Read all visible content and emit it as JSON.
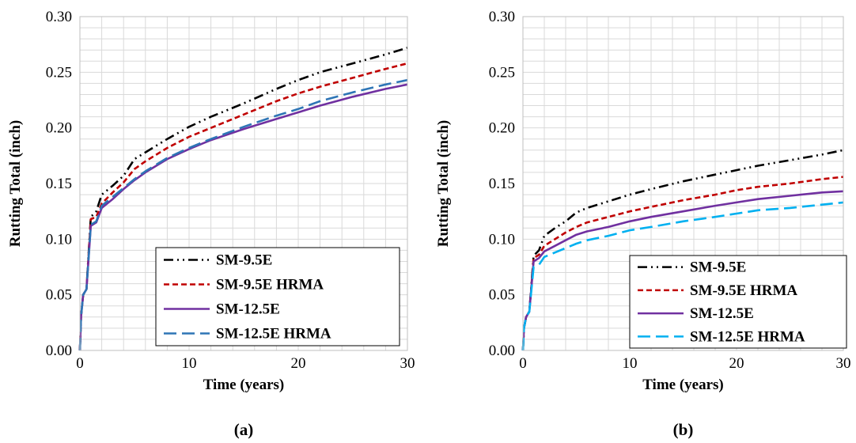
{
  "chart_data": [
    {
      "type": "line",
      "panel_label": "(a)",
      "xlabel": "Time (years)",
      "ylabel": "Rutting Total (inch)",
      "xlim": [
        0,
        30
      ],
      "ylim": [
        0,
        0.3
      ],
      "x_ticks": [
        "0",
        "10",
        "20",
        "30"
      ],
      "y_ticks": [
        "0.00",
        "0.05",
        "0.10",
        "0.15",
        "0.20",
        "0.25",
        "0.30"
      ],
      "grid": true,
      "legend_position": "bottom-right",
      "series": [
        {
          "name": "SM-9.5E",
          "color": "#000000",
          "dash": "dash-dot-dot",
          "x": [
            0,
            0.1,
            0.3,
            0.6,
            1,
            1.5,
            2,
            3,
            4,
            5,
            6,
            8,
            10,
            12,
            15,
            18,
            20,
            22,
            25,
            28,
            30
          ],
          "y": [
            0,
            0.03,
            0.05,
            0.055,
            0.12,
            0.125,
            0.14,
            0.148,
            0.157,
            0.172,
            0.178,
            0.19,
            0.201,
            0.21,
            0.222,
            0.235,
            0.243,
            0.25,
            0.258,
            0.266,
            0.272
          ]
        },
        {
          "name": "SM-9.5E HRMA",
          "color": "#c00000",
          "dash": "short-dash",
          "x": [
            0,
            0.1,
            0.3,
            0.6,
            1,
            1.5,
            2,
            3,
            4,
            5,
            6,
            8,
            10,
            12,
            15,
            18,
            20,
            22,
            25,
            28,
            30
          ],
          "y": [
            0,
            0.03,
            0.05,
            0.055,
            0.118,
            0.12,
            0.132,
            0.142,
            0.151,
            0.163,
            0.17,
            0.182,
            0.192,
            0.2,
            0.212,
            0.224,
            0.231,
            0.237,
            0.245,
            0.253,
            0.258
          ]
        },
        {
          "name": "SM-12.5E",
          "color": "#7030a0",
          "dash": "solid",
          "x": [
            0,
            0.1,
            0.3,
            0.6,
            1,
            1.5,
            2,
            3,
            4,
            5,
            6,
            8,
            10,
            12,
            15,
            18,
            20,
            22,
            25,
            28,
            30
          ],
          "y": [
            0,
            0.03,
            0.05,
            0.055,
            0.112,
            0.115,
            0.128,
            0.136,
            0.145,
            0.153,
            0.16,
            0.172,
            0.181,
            0.189,
            0.199,
            0.208,
            0.214,
            0.22,
            0.228,
            0.235,
            0.239
          ]
        },
        {
          "name": "SM-12.5E HRMA",
          "color": "#2e75b6",
          "dash": "long-dash",
          "x": [
            0,
            0.1,
            0.3,
            0.6,
            1,
            1.5,
            2,
            3,
            4,
            5,
            6,
            8,
            10,
            12,
            15,
            18,
            20,
            22,
            25,
            28,
            30
          ],
          "y": [
            0,
            0.03,
            0.05,
            0.055,
            0.113,
            0.116,
            0.13,
            0.138,
            0.146,
            0.154,
            0.161,
            0.173,
            0.182,
            0.19,
            0.201,
            0.211,
            0.217,
            0.224,
            0.232,
            0.239,
            0.243
          ]
        }
      ]
    },
    {
      "type": "line",
      "panel_label": "(b)",
      "xlabel": "Time (years)",
      "ylabel": "Rutting Total (inch)",
      "xlim": [
        0,
        30
      ],
      "ylim": [
        0,
        0.3
      ],
      "x_ticks": [
        "0",
        "10",
        "20",
        "30"
      ],
      "y_ticks": [
        "0.00",
        "0.05",
        "0.10",
        "0.15",
        "0.20",
        "0.25",
        "0.30"
      ],
      "grid": true,
      "legend_position": "bottom-right",
      "series": [
        {
          "name": "SM-9.5E",
          "color": "#000000",
          "dash": "dash-dot-dot",
          "x": [
            0,
            0.1,
            0.3,
            0.6,
            1,
            1.5,
            2,
            3,
            4,
            5,
            6,
            8,
            10,
            12,
            15,
            18,
            20,
            22,
            25,
            28,
            30
          ],
          "y": [
            0,
            0.02,
            0.03,
            0.035,
            0.085,
            0.09,
            0.103,
            0.11,
            0.116,
            0.124,
            0.128,
            0.134,
            0.14,
            0.145,
            0.152,
            0.158,
            0.162,
            0.166,
            0.171,
            0.176,
            0.18
          ]
        },
        {
          "name": "SM-9.5E HRMA",
          "color": "#c00000",
          "dash": "short-dash",
          "x": [
            0,
            0.1,
            0.3,
            0.6,
            1,
            1.5,
            2,
            3,
            4,
            5,
            6,
            8,
            10,
            12,
            15,
            18,
            20,
            22,
            25,
            28,
            30
          ],
          "y": [
            0,
            0.02,
            0.03,
            0.035,
            0.083,
            0.086,
            0.094,
            0.1,
            0.106,
            0.111,
            0.115,
            0.12,
            0.125,
            0.129,
            0.135,
            0.14,
            0.144,
            0.147,
            0.15,
            0.154,
            0.156
          ]
        },
        {
          "name": "SM-12.5E",
          "color": "#7030a0",
          "dash": "solid",
          "x": [
            0,
            0.1,
            0.3,
            0.6,
            1,
            1.5,
            2,
            3,
            4,
            5,
            6,
            8,
            10,
            12,
            15,
            18,
            20,
            22,
            25,
            28,
            30
          ],
          "y": [
            0,
            0.02,
            0.03,
            0.035,
            0.08,
            0.083,
            0.089,
            0.094,
            0.099,
            0.104,
            0.107,
            0.111,
            0.116,
            0.12,
            0.125,
            0.13,
            0.133,
            0.136,
            0.139,
            0.142,
            0.143
          ]
        },
        {
          "name": "SM-12.5E HRMA",
          "color": "#00b0f0",
          "dash": "long-dash",
          "x": [
            0,
            0.1,
            0.3,
            0.6,
            1,
            1.5,
            2,
            3,
            4,
            5,
            6,
            8,
            10,
            12,
            15,
            18,
            20,
            22,
            25,
            28,
            30
          ],
          "y": [
            0,
            0.02,
            0.03,
            0.035,
            0.075,
            0.077,
            0.084,
            0.088,
            0.092,
            0.096,
            0.099,
            0.103,
            0.108,
            0.111,
            0.116,
            0.12,
            0.123,
            0.126,
            0.128,
            0.131,
            0.133
          ]
        }
      ]
    }
  ]
}
